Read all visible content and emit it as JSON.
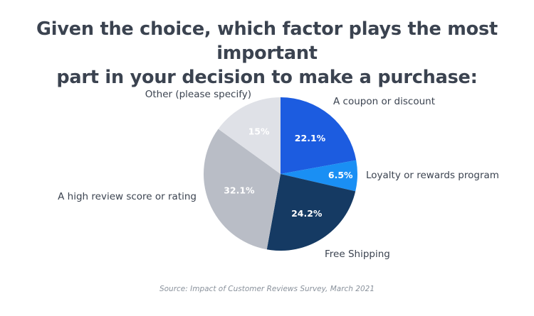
{
  "chart_data": {
    "type": "pie",
    "title_lines": [
      "Given the choice, which factor plays the most important",
      "part in your decision to make a purchase:"
    ],
    "slices": [
      {
        "label": "A coupon or discount",
        "value": 22.1,
        "display": "22.1%",
        "color": "#1c5ce0"
      },
      {
        "label": "Loyalty or rewards program",
        "value": 6.5,
        "display": "6.5%",
        "color": "#1a8ff4"
      },
      {
        "label": "Free Shipping",
        "value": 24.2,
        "display": "24.2%",
        "color": "#153a63"
      },
      {
        "label": "A high review score or rating",
        "value": 32.1,
        "display": "32.1%",
        "color": "#b9bdc6"
      },
      {
        "label": "Other (please specify)",
        "value": 15,
        "display": "15%",
        "color": "#dfe1e7"
      }
    ],
    "start_angle": "12 o'clock",
    "direction": "clockwise",
    "source": "Source: Impact of Customer Reviews Survey, March 2021"
  }
}
